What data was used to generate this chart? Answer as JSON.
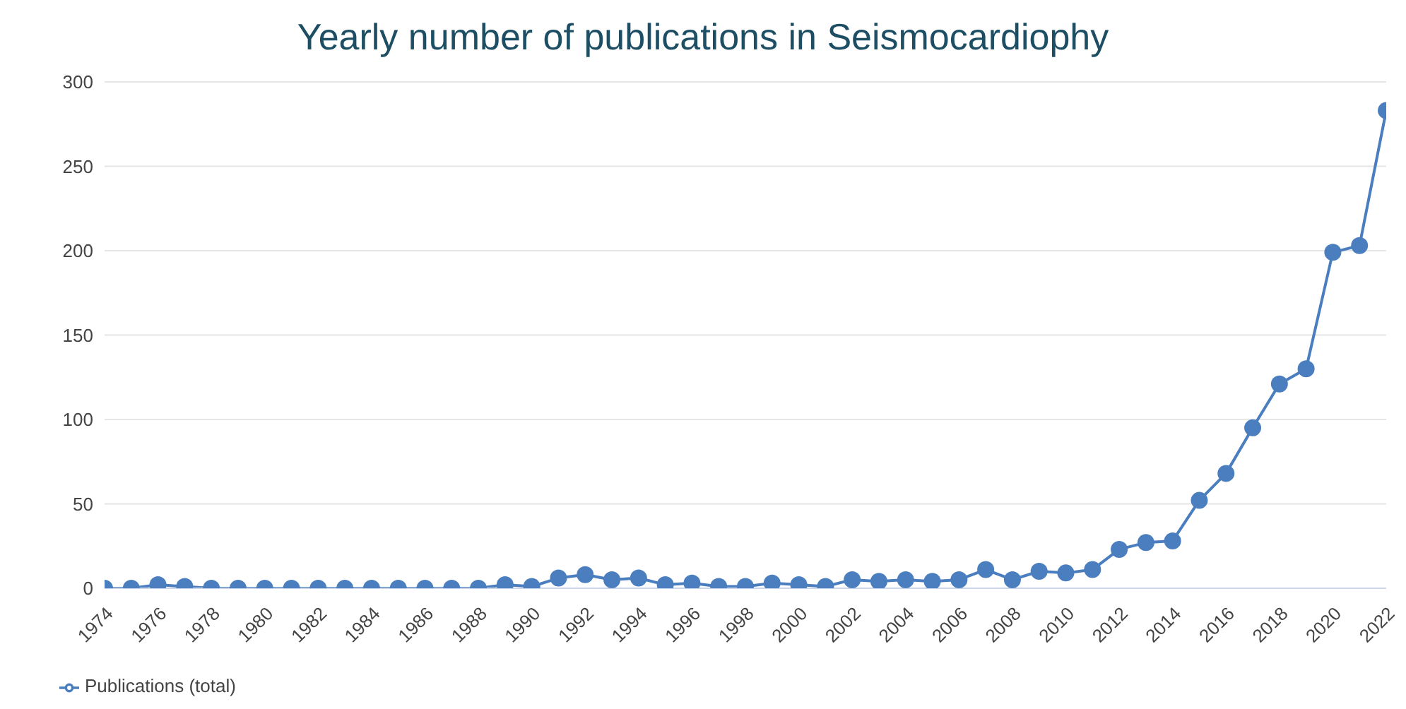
{
  "chart_data": {
    "type": "line",
    "title": "Yearly number of publications in Seismocardiophy",
    "x": [
      1974,
      1975,
      1976,
      1977,
      1978,
      1979,
      1980,
      1981,
      1982,
      1983,
      1984,
      1985,
      1986,
      1987,
      1988,
      1989,
      1990,
      1991,
      1992,
      1993,
      1994,
      1995,
      1996,
      1997,
      1998,
      1999,
      2000,
      2001,
      2002,
      2003,
      2004,
      2005,
      2006,
      2007,
      2008,
      2009,
      2010,
      2011,
      2012,
      2013,
      2014,
      2015,
      2016,
      2017,
      2018,
      2019,
      2020,
      2021,
      2022
    ],
    "series": [
      {
        "name": "Publications (total)",
        "color": "#4a7ebf",
        "values": [
          0,
          0,
          2,
          1,
          0,
          0,
          0,
          0,
          0,
          0,
          0,
          0,
          0,
          0,
          0,
          2,
          1,
          6,
          8,
          5,
          6,
          2,
          3,
          1,
          1,
          3,
          2,
          1,
          5,
          4,
          5,
          4,
          5,
          11,
          5,
          10,
          9,
          11,
          23,
          27,
          28,
          52,
          68,
          95,
          121,
          130,
          199,
          203,
          283
        ]
      }
    ],
    "xlim": [
      1974,
      2022
    ],
    "xticks": [
      1974,
      1976,
      1978,
      1980,
      1982,
      1984,
      1986,
      1988,
      1990,
      1992,
      1994,
      1996,
      1998,
      2000,
      2002,
      2004,
      2006,
      2008,
      2010,
      2012,
      2014,
      2016,
      2018,
      2020,
      2022
    ],
    "ylim": [
      0,
      300
    ],
    "yticks": [
      0,
      50,
      100,
      150,
      200,
      250,
      300
    ],
    "grid": "y",
    "legend": "bottom left",
    "marker": "circle",
    "line_style": "solid"
  }
}
